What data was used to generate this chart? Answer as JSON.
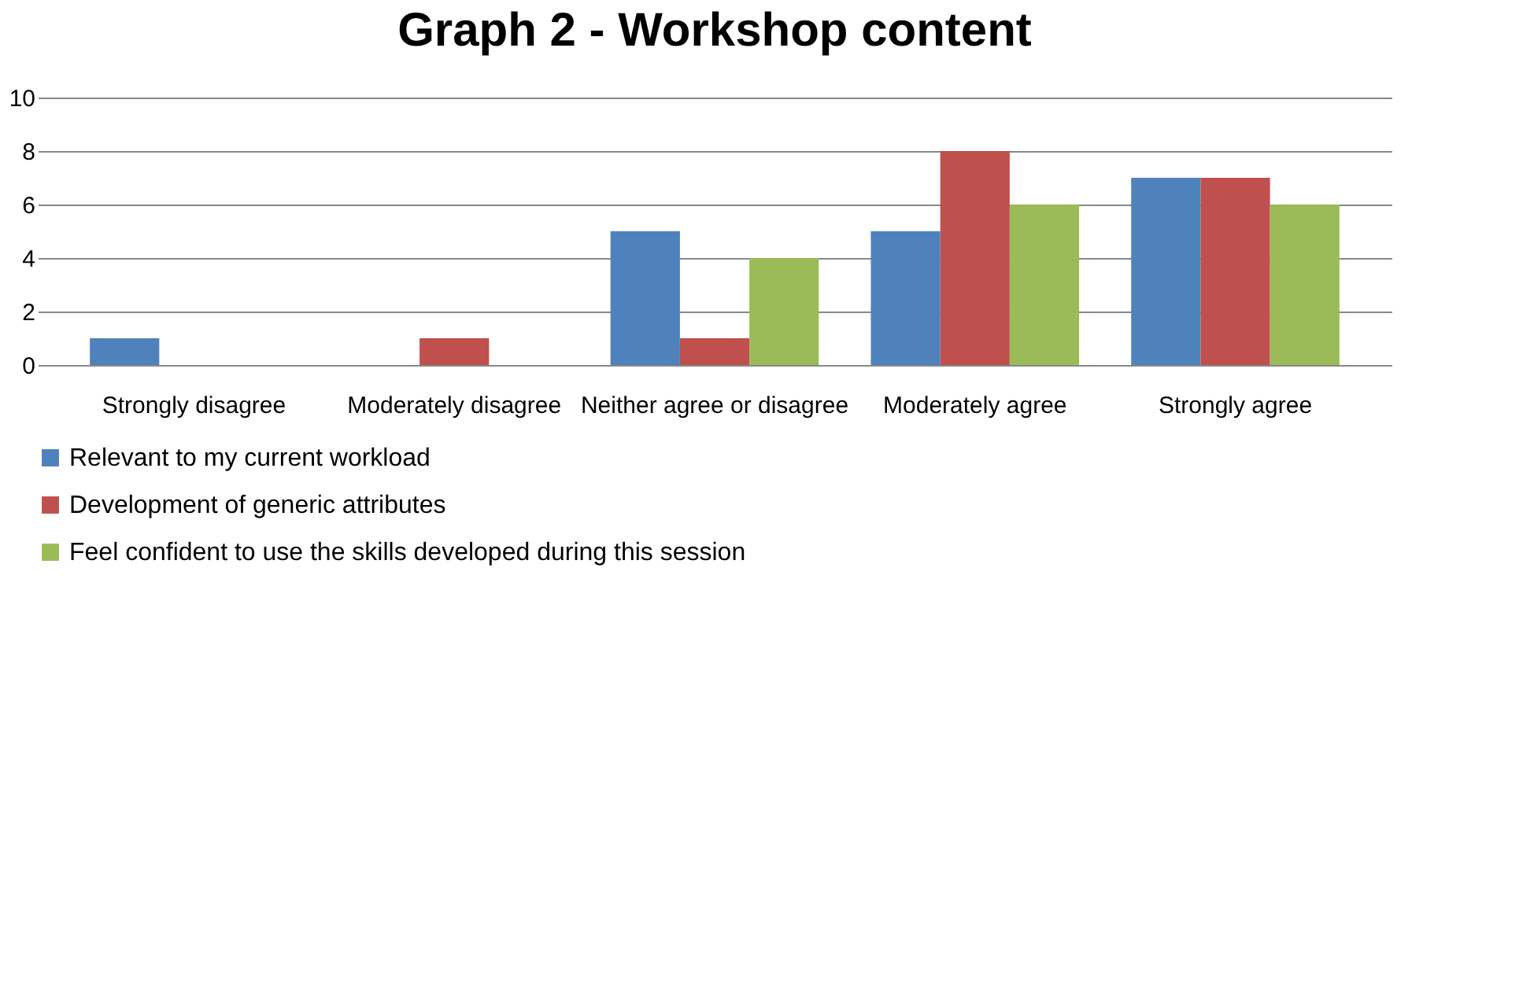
{
  "chart_data": {
    "type": "bar",
    "title": "Graph 2 - Workshop content",
    "categories": [
      "Strongly disagree",
      "Moderately disagree",
      "Neither agree or disagree",
      "Moderately agree",
      "Strongly agree"
    ],
    "series": [
      {
        "name": "Relevant to my current  workload",
        "color": "#4f81bd",
        "values": [
          1,
          0,
          5,
          5,
          7
        ]
      },
      {
        "name": "Development of generic attributes",
        "color": "#c0504d",
        "values": [
          0,
          1,
          1,
          8,
          7
        ]
      },
      {
        "name": "Feel confident to use the skills developed during this session",
        "color": "#9bbb59",
        "values": [
          0,
          0,
          4,
          6,
          6
        ]
      }
    ],
    "ylim": [
      0,
      10
    ],
    "yticks": [
      0,
      2,
      4,
      6,
      8,
      10
    ],
    "grid": "y",
    "legend": "bottom"
  }
}
